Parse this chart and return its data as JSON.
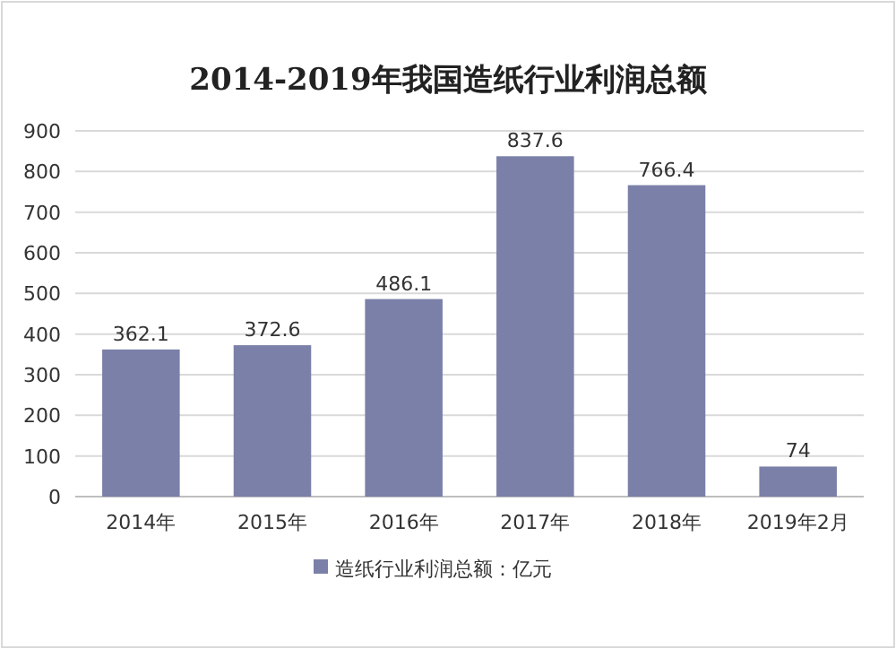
{
  "chart_data": {
    "type": "bar",
    "title": "2014-2019年我国造纸行业利润总额",
    "categories": [
      "2014年",
      "2015年",
      "2016年",
      "2017年",
      "2018年",
      "2019年2月"
    ],
    "series": [
      {
        "name": "造纸行业利润总额：亿元",
        "color": "#7b80a8",
        "values": [
          362.1,
          372.6,
          486.1,
          837.6,
          766.4,
          74
        ]
      }
    ],
    "ylim": [
      0,
      900
    ],
    "yticks": [
      0,
      100,
      200,
      300,
      400,
      500,
      600,
      700,
      800,
      900
    ],
    "grid": "y",
    "legend": "bottom",
    "data_labels": true
  }
}
